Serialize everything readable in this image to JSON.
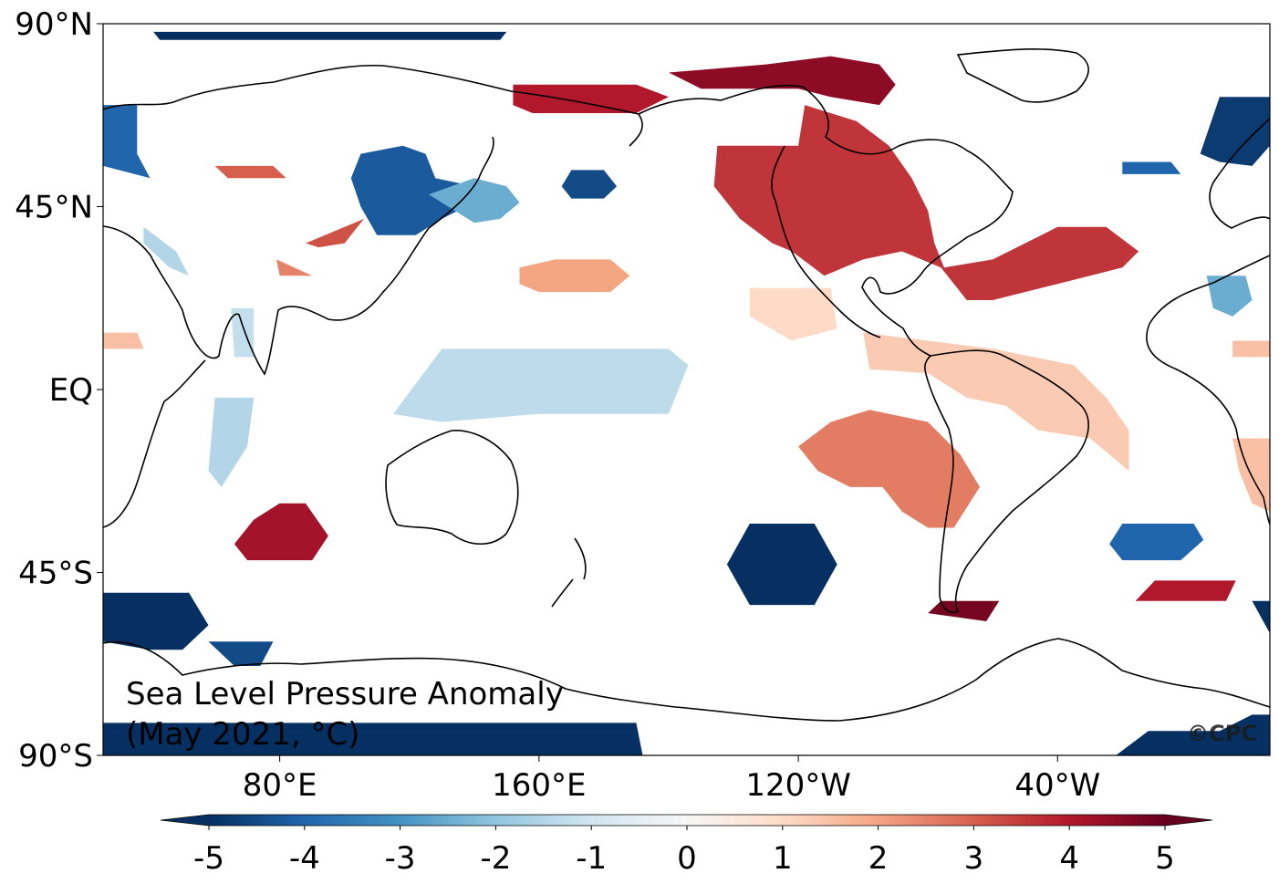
{
  "chart_data": {
    "type": "heatmap",
    "title_line1": "Sea Level Pressure Anomaly",
    "title_line2": "(May 2021, °C)",
    "credit": "©CPC",
    "projection": "plate-carree-pacific-centered",
    "lon_range": [
      25.5,
      385.5
    ],
    "lat_range": [
      -90,
      90
    ],
    "x_ticks": [
      {
        "lon": 80,
        "label": "80°E"
      },
      {
        "lon": 160,
        "label": "160°E"
      },
      {
        "lon": 240,
        "label": "120°W"
      },
      {
        "lon": 320,
        "label": "40°W"
      }
    ],
    "y_ticks": [
      {
        "lat": 90,
        "label": "90°N"
      },
      {
        "lat": 45,
        "label": "45°N"
      },
      {
        "lat": 0,
        "label": "EQ"
      },
      {
        "lat": -45,
        "label": "45°S"
      },
      {
        "lat": -90,
        "label": "90°S"
      }
    ],
    "colorbar": {
      "min": -5,
      "max": 5,
      "extend": "both",
      "ticks": [
        "-5",
        "-4",
        "-3",
        "-2",
        "-1",
        "0",
        "1",
        "2",
        "3",
        "4",
        "5"
      ],
      "colors": [
        "#053061",
        "#2166ac",
        "#4393c3",
        "#92c5de",
        "#d1e5f0",
        "#f7f7f7",
        "#fddbc7",
        "#f4a582",
        "#d6604d",
        "#b2182b",
        "#67001f"
      ]
    },
    "anomaly_regions": [
      {
        "name": "arctic-strip",
        "value": -5,
        "poly": [
          [
            41,
            88
          ],
          [
            150,
            88
          ],
          [
            148,
            86
          ],
          [
            43,
            86
          ]
        ]
      },
      {
        "name": "north-atlantic-east",
        "value": -4,
        "poly": [
          [
            25.5,
            70
          ],
          [
            36,
            70
          ],
          [
            36,
            58
          ],
          [
            40,
            52
          ],
          [
            25.5,
            55
          ]
        ]
      },
      {
        "name": "siberia-low",
        "value": -4.2,
        "poly": [
          [
            105,
            58
          ],
          [
            118,
            60
          ],
          [
            125,
            58
          ],
          [
            128,
            52
          ],
          [
            140,
            50
          ],
          [
            140,
            46
          ],
          [
            130,
            42
          ],
          [
            122,
            38
          ],
          [
            110,
            38
          ],
          [
            105,
            45
          ],
          [
            102,
            52
          ]
        ]
      },
      {
        "name": "japan-ext",
        "value": -2.5,
        "poly": [
          [
            126,
            48
          ],
          [
            140,
            52
          ],
          [
            150,
            50
          ],
          [
            154,
            46
          ],
          [
            148,
            42
          ],
          [
            140,
            41
          ]
        ]
      },
      {
        "name": "north-pacific-blue",
        "value": -4.5,
        "poly": [
          [
            170,
            54
          ],
          [
            180,
            54
          ],
          [
            184,
            50
          ],
          [
            180,
            47
          ],
          [
            170,
            47
          ],
          [
            167,
            50
          ]
        ]
      },
      {
        "name": "caspian-blue",
        "value": -1.5,
        "poly": [
          [
            38,
            40
          ],
          [
            48,
            34
          ],
          [
            52,
            28
          ],
          [
            46,
            30
          ],
          [
            38,
            36
          ]
        ]
      },
      {
        "name": "arabia-blue",
        "value": -1.2,
        "poly": [
          [
            65,
            20
          ],
          [
            72,
            20
          ],
          [
            72,
            8
          ],
          [
            66,
            8
          ]
        ]
      },
      {
        "name": "w-pacific-equator",
        "value": -1.3,
        "poly": [
          [
            130,
            10
          ],
          [
            200,
            10
          ],
          [
            206,
            6
          ],
          [
            200,
            -6
          ],
          [
            160,
            -6
          ],
          [
            130,
            -8
          ],
          [
            115,
            -6
          ]
        ]
      },
      {
        "name": "indian-ocean-blue",
        "value": -1.5,
        "poly": [
          [
            60,
            -2
          ],
          [
            72,
            -2
          ],
          [
            70,
            -14
          ],
          [
            62,
            -24
          ],
          [
            58,
            -20
          ]
        ]
      },
      {
        "name": "north-atlantic-west",
        "value": -4,
        "poly": [
          [
            340,
            56
          ],
          [
            355,
            56
          ],
          [
            358,
            53
          ],
          [
            340,
            53
          ]
        ]
      },
      {
        "name": "north-atlantic-ne",
        "value": -4.8,
        "poly": [
          [
            370,
            72
          ],
          [
            385.5,
            72
          ],
          [
            385.5,
            60
          ],
          [
            380,
            55
          ],
          [
            370,
            56
          ],
          [
            364,
            58
          ]
        ]
      },
      {
        "name": "azores-blue",
        "value": -2.5,
        "poly": [
          [
            366,
            28
          ],
          [
            378,
            28
          ],
          [
            380,
            22
          ],
          [
            374,
            18
          ],
          [
            368,
            20
          ]
        ]
      },
      {
        "name": "se-pacific-low",
        "value": -5,
        "poly": [
          [
            225,
            -33
          ],
          [
            245,
            -33
          ],
          [
            252,
            -43
          ],
          [
            245,
            -53
          ],
          [
            225,
            -53
          ],
          [
            218,
            -43
          ]
        ]
      },
      {
        "name": "south-atlantic-low",
        "value": -4,
        "poly": [
          [
            340,
            -33
          ],
          [
            362,
            -33
          ],
          [
            365,
            -37
          ],
          [
            358,
            -42
          ],
          [
            340,
            -42
          ],
          [
            336,
            -38
          ]
        ]
      },
      {
        "name": "southern-indian-low",
        "value": -5,
        "poly": [
          [
            25.5,
            -50
          ],
          [
            52,
            -50
          ],
          [
            58,
            -58
          ],
          [
            50,
            -64
          ],
          [
            40,
            -64
          ],
          [
            25.5,
            -62
          ]
        ]
      },
      {
        "name": "southern-indian-low2",
        "value": -4.5,
        "poly": [
          [
            58,
            -62
          ],
          [
            78,
            -62
          ],
          [
            74,
            -68
          ],
          [
            66,
            -68
          ]
        ]
      },
      {
        "name": "antarctic-west",
        "value": -5,
        "poly": [
          [
            25.5,
            -82
          ],
          [
            190,
            -82
          ],
          [
            192,
            -90
          ],
          [
            25.5,
            -90
          ]
        ]
      },
      {
        "name": "antarctic-east",
        "value": -5,
        "poly": [
          [
            380,
            -80
          ],
          [
            385.5,
            -80
          ],
          [
            385.5,
            -90
          ],
          [
            338,
            -90
          ],
          [
            348,
            -84
          ],
          [
            370,
            -84
          ]
        ]
      },
      {
        "name": "east-edge-blue",
        "value": -5,
        "poly": [
          [
            380,
            -52
          ],
          [
            385.5,
            -52
          ],
          [
            385.5,
            -60
          ]
        ]
      },
      {
        "name": "siberia-red",
        "value": 3,
        "poly": [
          [
            60,
            55
          ],
          [
            78,
            55
          ],
          [
            82,
            52
          ],
          [
            64,
            52
          ]
        ]
      },
      {
        "name": "mongolia-red",
        "value": 3.2,
        "poly": [
          [
            100,
            40
          ],
          [
            106,
            42
          ],
          [
            100,
            36
          ],
          [
            92,
            35
          ],
          [
            88,
            36
          ]
        ]
      },
      {
        "name": "pakistan-red",
        "value": 2.5,
        "poly": [
          [
            79,
            32
          ],
          [
            90,
            28
          ],
          [
            80,
            28
          ]
        ]
      },
      {
        "name": "arctic-pacific-red",
        "value": 4,
        "poly": [
          [
            152,
            75
          ],
          [
            190,
            75
          ],
          [
            200,
            72
          ],
          [
            190,
            68
          ],
          [
            158,
            68
          ],
          [
            152,
            70
          ]
        ]
      },
      {
        "name": "bering-red",
        "value": 4.5,
        "poly": [
          [
            200,
            78
          ],
          [
            230,
            80
          ],
          [
            250,
            82
          ],
          [
            265,
            80
          ],
          [
            270,
            75
          ],
          [
            265,
            70
          ],
          [
            250,
            72
          ],
          [
            240,
            74
          ],
          [
            210,
            74
          ]
        ]
      },
      {
        "name": "north-america-red",
        "value": 3.6,
        "poly": [
          [
            215,
            60
          ],
          [
            240,
            60
          ],
          [
            242,
            70
          ],
          [
            258,
            66
          ],
          [
            268,
            60
          ],
          [
            275,
            52
          ],
          [
            280,
            44
          ],
          [
            282,
            36
          ],
          [
            285,
            30
          ],
          [
            300,
            32
          ],
          [
            320,
            40
          ],
          [
            335,
            40
          ],
          [
            345,
            34
          ],
          [
            340,
            30
          ],
          [
            320,
            26
          ],
          [
            300,
            22
          ],
          [
            292,
            22
          ],
          [
            284,
            30
          ],
          [
            272,
            34
          ],
          [
            260,
            32
          ],
          [
            248,
            28
          ],
          [
            238,
            34
          ],
          [
            232,
            36
          ],
          [
            222,
            42
          ],
          [
            214,
            50
          ]
        ]
      },
      {
        "name": "central-pacific-red",
        "value": 2,
        "poly": [
          [
            154,
            30
          ],
          [
            165,
            32
          ],
          [
            182,
            32
          ],
          [
            188,
            28
          ],
          [
            182,
            24
          ],
          [
            160,
            24
          ],
          [
            154,
            26
          ]
        ]
      },
      {
        "name": "hawaii-red",
        "value": 1,
        "poly": [
          [
            225,
            25
          ],
          [
            250,
            25
          ],
          [
            252,
            15
          ],
          [
            238,
            12
          ],
          [
            225,
            18
          ]
        ]
      },
      {
        "name": "tropical-atlantic-red",
        "value": 1.3,
        "poly": [
          [
            260,
            14
          ],
          [
            280,
            12
          ],
          [
            300,
            10
          ],
          [
            325,
            6
          ],
          [
            335,
            -2
          ],
          [
            342,
            -10
          ],
          [
            342,
            -20
          ],
          [
            330,
            -12
          ],
          [
            314,
            -10
          ],
          [
            304,
            -4
          ],
          [
            292,
            -2
          ],
          [
            280,
            4
          ],
          [
            262,
            5
          ]
        ]
      },
      {
        "name": "south-america-red",
        "value": 2.6,
        "poly": [
          [
            250,
            -8
          ],
          [
            262,
            -5
          ],
          [
            280,
            -8
          ],
          [
            290,
            -16
          ],
          [
            296,
            -24
          ],
          [
            288,
            -34
          ],
          [
            280,
            -34
          ],
          [
            272,
            -30
          ],
          [
            266,
            -24
          ],
          [
            256,
            -24
          ],
          [
            246,
            -20
          ],
          [
            240,
            -14
          ]
        ]
      },
      {
        "name": "south-indian-red",
        "value": 4.2,
        "poly": [
          [
            80,
            -28
          ],
          [
            88,
            -28
          ],
          [
            95,
            -36
          ],
          [
            90,
            -42
          ],
          [
            70,
            -42
          ],
          [
            66,
            -38
          ],
          [
            72,
            -32
          ]
        ]
      },
      {
        "name": "south-atlantic-red",
        "value": 4,
        "poly": [
          [
            350,
            -47
          ],
          [
            375,
            -47
          ],
          [
            372,
            -52
          ],
          [
            344,
            -52
          ]
        ]
      },
      {
        "name": "drake-red",
        "value": 4.8,
        "poly": [
          [
            284,
            -52
          ],
          [
            302,
            -52
          ],
          [
            298,
            -57
          ],
          [
            280,
            -55
          ]
        ]
      },
      {
        "name": "west-indian-red",
        "value": 1.5,
        "poly": [
          [
            25.5,
            14
          ],
          [
            36,
            14
          ],
          [
            38,
            10
          ],
          [
            25.5,
            10
          ]
        ]
      },
      {
        "name": "east-edge-red",
        "value": 1.5,
        "poly": [
          [
            374,
            12
          ],
          [
            385.5,
            12
          ],
          [
            385.5,
            8
          ],
          [
            374,
            8
          ]
        ]
      },
      {
        "name": "sw-atlantic-red",
        "value": 1.5,
        "poly": [
          [
            374,
            -12
          ],
          [
            385.5,
            -12
          ],
          [
            385.5,
            -30
          ],
          [
            380,
            -28
          ],
          [
            376,
            -20
          ]
        ]
      }
    ]
  }
}
